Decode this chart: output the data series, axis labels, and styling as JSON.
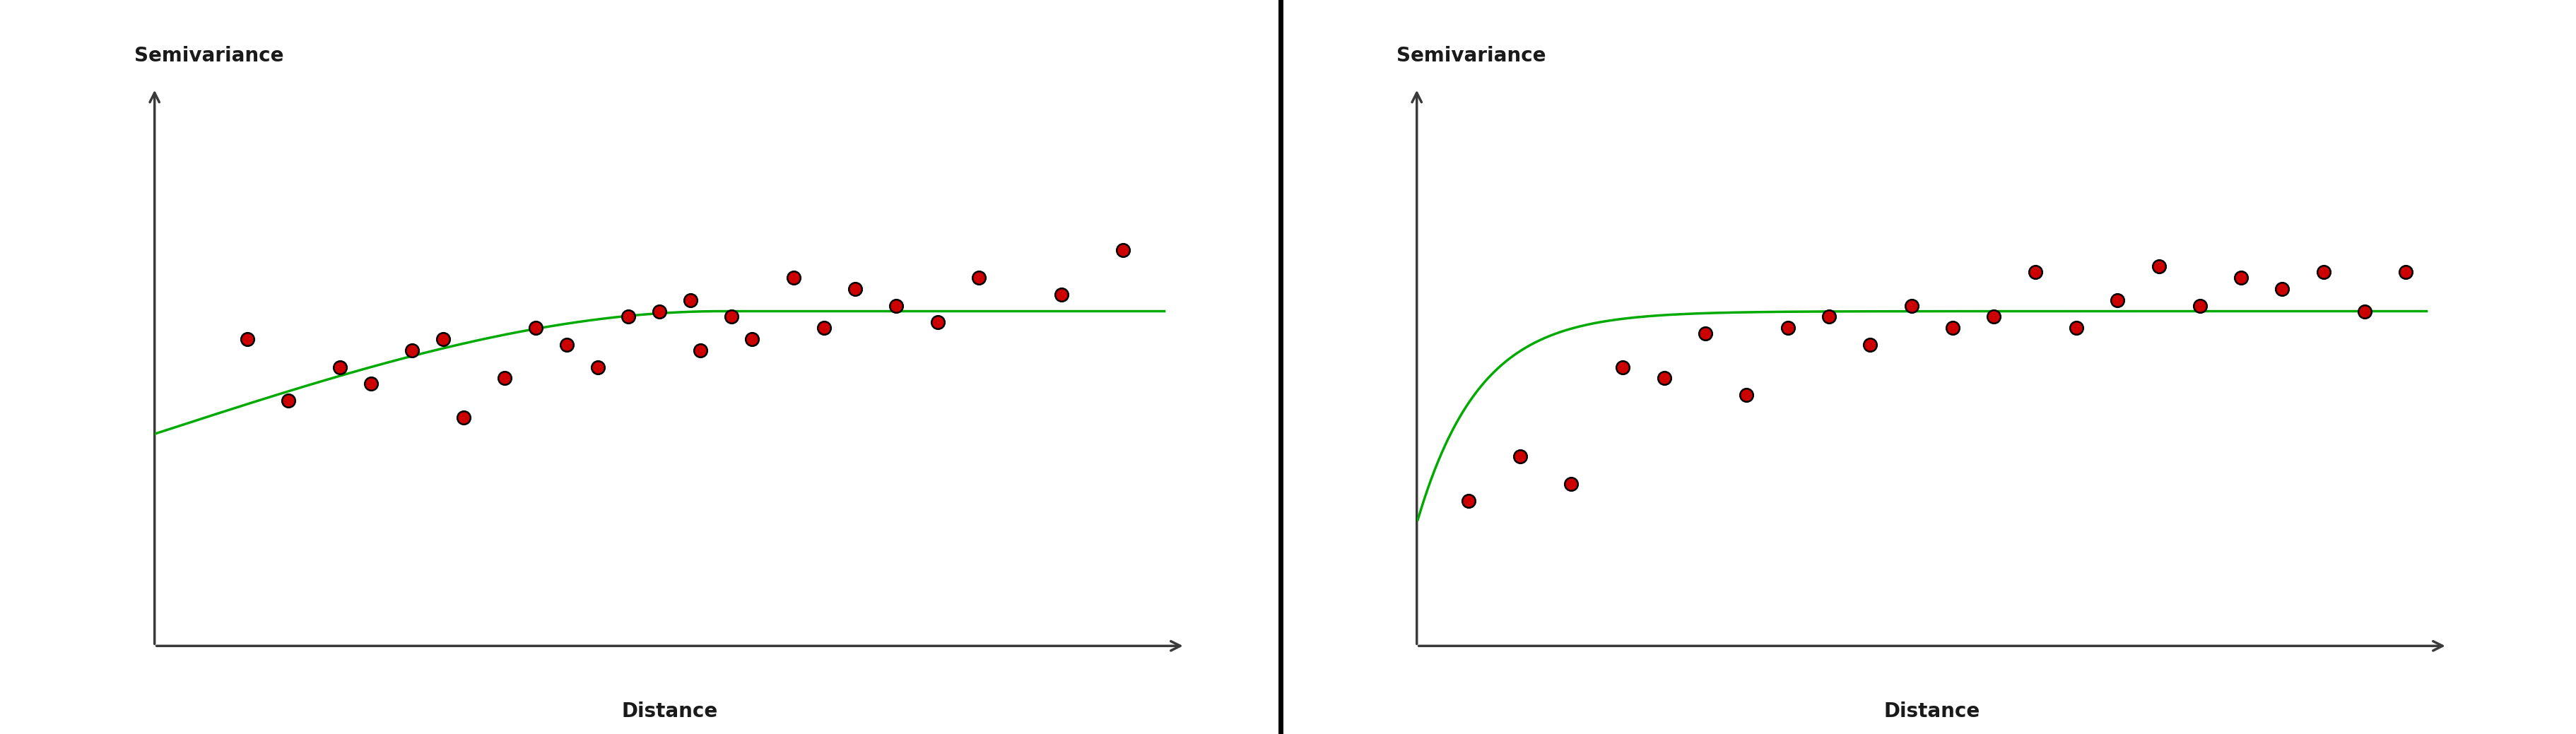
{
  "background_color": "#ffffff",
  "divider_color": "#000000",
  "axis_color": "#3a3a3a",
  "line_color": "#00aa00",
  "dot_color": "#cc0000",
  "dot_edge_color": "#000000",
  "ylabel": "Semivariance",
  "xlabel": "Distance",
  "label_fontsize": 20,
  "label_fontweight": "bold",
  "spherical_nugget": 0.38,
  "spherical_sill": 0.6,
  "spherical_range": 0.55,
  "exponential_nugget": 0.22,
  "exponential_sill": 0.6,
  "exponential_range": 0.18,
  "ylim_min": 0.0,
  "ylim_max": 1.0,
  "xlim_min": 0.0,
  "xlim_max": 1.0,
  "dots_left_x": [
    0.09,
    0.13,
    0.18,
    0.21,
    0.25,
    0.28,
    0.3,
    0.34,
    0.37,
    0.4,
    0.43,
    0.46,
    0.49,
    0.52,
    0.53,
    0.56,
    0.58,
    0.62,
    0.65,
    0.68,
    0.72,
    0.76,
    0.8,
    0.88,
    0.94
  ],
  "dots_left_y": [
    0.55,
    0.44,
    0.5,
    0.47,
    0.53,
    0.55,
    0.41,
    0.48,
    0.57,
    0.54,
    0.5,
    0.59,
    0.6,
    0.62,
    0.53,
    0.59,
    0.55,
    0.66,
    0.57,
    0.64,
    0.61,
    0.58,
    0.66,
    0.63,
    0.71
  ],
  "dots_right_x": [
    0.05,
    0.1,
    0.15,
    0.2,
    0.24,
    0.28,
    0.32,
    0.36,
    0.4,
    0.44,
    0.48,
    0.52,
    0.56,
    0.6,
    0.64,
    0.68,
    0.72,
    0.76,
    0.8,
    0.84,
    0.88,
    0.92,
    0.96
  ],
  "dots_right_y": [
    0.26,
    0.34,
    0.29,
    0.5,
    0.48,
    0.56,
    0.45,
    0.57,
    0.59,
    0.54,
    0.61,
    0.57,
    0.59,
    0.67,
    0.57,
    0.62,
    0.68,
    0.61,
    0.66,
    0.64,
    0.67,
    0.6,
    0.67
  ]
}
